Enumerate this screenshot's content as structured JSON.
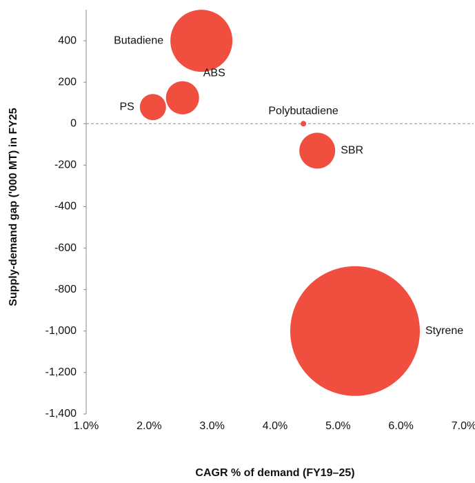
{
  "chart_data": {
    "type": "bubble",
    "xlabel": "CAGR % of demand (FY19–25)",
    "ylabel": "Supply-demand gap ('000 MT) in FY25",
    "labels": [
      "Butadiene",
      "ABS",
      "PS",
      "Polybutadiene",
      "SBR",
      "Styrene"
    ],
    "x": [
      2.83,
      2.53,
      2.06,
      4.45,
      4.67,
      5.27
    ],
    "values": [
      400,
      125,
      80,
      0,
      -130,
      -1000
    ],
    "sizes": [
      2025,
      576,
      361,
      16,
      676,
      8836
    ],
    "color": "#f04e3f",
    "xlim": [
      1,
      7
    ],
    "xticks": [
      {
        "value": 1,
        "label": "1.0%"
      },
      {
        "value": 2,
        "label": "2.0%"
      },
      {
        "value": 3,
        "label": "3.0%"
      },
      {
        "value": 4,
        "label": "4.0%"
      },
      {
        "value": 5,
        "label": "5.0%"
      },
      {
        "value": 6,
        "label": "6.0%"
      },
      {
        "value": 7,
        "label": "7.0%"
      }
    ],
    "ylim": [
      -1400,
      550
    ],
    "yticks": [
      {
        "value": -1400,
        "label": "-1,400"
      },
      {
        "value": -1200,
        "label": "-1,200"
      },
      {
        "value": -1000,
        "label": "-1,000"
      },
      -800,
      -600,
      -400,
      -200,
      0,
      200,
      400
    ],
    "zero_line": true
  }
}
